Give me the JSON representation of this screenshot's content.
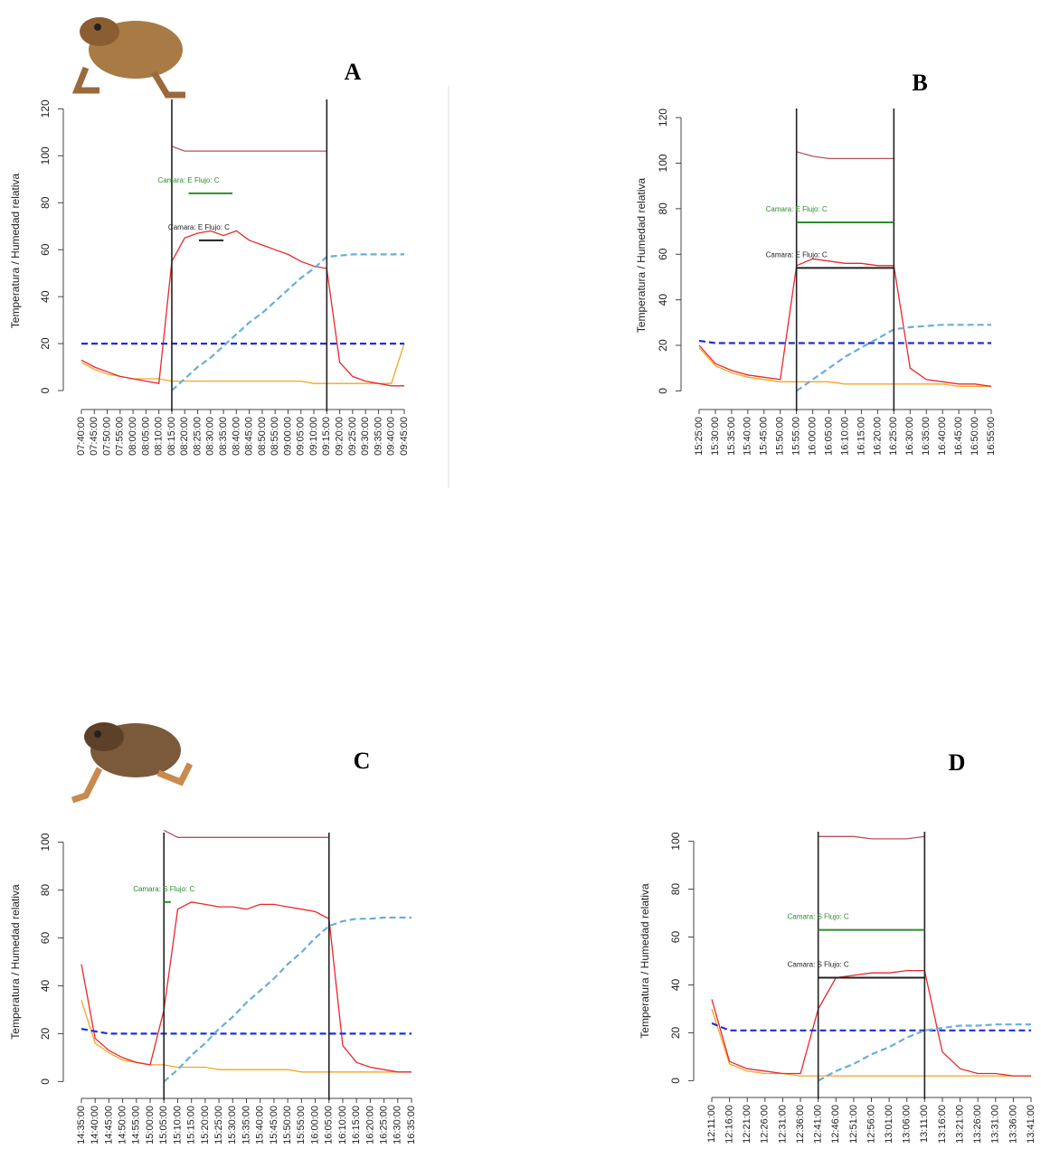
{
  "chart_data": [
    {
      "type": "line",
      "title": "A",
      "ylabel": "Temperatura / Humedad relativa",
      "categories": [
        "07:40:00",
        "07:45:00",
        "07:50:00",
        "07:55:00",
        "08:00:00",
        "08:05:00",
        "08:10:00",
        "08:15:00",
        "08:20:00",
        "08:25:00",
        "08:30:00",
        "08:35:00",
        "08:40:00",
        "08:45:00",
        "08:50:00",
        "08:55:00",
        "09:00:00",
        "09:05:00",
        "09:10:00",
        "09:15:00",
        "09:20:00",
        "09:25:00",
        "09:30:00",
        "09:35:00",
        "09:40:00",
        "09:45:00"
      ],
      "ylim": [
        -5,
        124
      ],
      "yticks": [
        0,
        20,
        40,
        60,
        80,
        100,
        120
      ],
      "vlines": [
        7,
        19
      ],
      "series": [
        {
          "color": "#b5535a",
          "dash": false,
          "values": [
            null,
            null,
            null,
            null,
            null,
            null,
            null,
            104,
            102,
            102,
            102,
            102,
            102,
            102,
            102,
            102,
            102,
            102,
            102,
            102,
            null,
            null,
            null,
            null,
            null,
            null
          ]
        },
        {
          "color": "#f5a623",
          "dash": false,
          "values": [
            12,
            9,
            7,
            6,
            5,
            5,
            5,
            4,
            4,
            4,
            4,
            4,
            4,
            4,
            4,
            4,
            4,
            4,
            3,
            3,
            3,
            3,
            3,
            3,
            3,
            20
          ]
        },
        {
          "color": "#e8282d",
          "dash": false,
          "values": [
            13,
            10,
            8,
            6,
            5,
            4,
            3,
            55,
            65,
            67,
            68,
            66,
            68,
            64,
            62,
            60,
            58,
            55,
            53,
            52,
            12,
            6,
            4,
            3,
            2,
            2
          ]
        },
        {
          "color": "#1f2fdc",
          "dash": true,
          "values": [
            20,
            20,
            20,
            20,
            20,
            20,
            20,
            20,
            20,
            20,
            20,
            20,
            20,
            20,
            20,
            20,
            20,
            20,
            20,
            20,
            20,
            20,
            20,
            20,
            20,
            20
          ]
        },
        {
          "color": "#6aaed6",
          "dash": true,
          "values": [
            null,
            null,
            null,
            null,
            null,
            null,
            null,
            0,
            5,
            10,
            14,
            19,
            24,
            29,
            33,
            38,
            43,
            48,
            52,
            57,
            57.5,
            58,
            58,
            58,
            58,
            58
          ]
        }
      ],
      "segments": [
        {
          "label": "Camara: E Flujo: C",
          "color": "#2e8b2e",
          "value": 84,
          "x": [
            8.3,
            11.7
          ]
        },
        {
          "label": "Camara: E Flujo: C",
          "color": "#222222",
          "value": 64,
          "x": [
            9.1,
            11
          ]
        }
      ]
    },
    {
      "type": "line",
      "title": "B",
      "ylabel": "Temperatura / Humedad relativa",
      "categories": [
        "15:25:00",
        "15:30:00",
        "15:35:00",
        "15:40:00",
        "15:45:00",
        "15:50:00",
        "15:55:00",
        "16:00:00",
        "16:05:00",
        "16:10:00",
        "16:15:00",
        "16:20:00",
        "16:25:00",
        "16:30:00",
        "16:35:00",
        "16:40:00",
        "16:45:00",
        "16:50:00",
        "16:55:00"
      ],
      "ylim": [
        -5,
        124
      ],
      "yticks": [
        0,
        20,
        40,
        60,
        80,
        100,
        120
      ],
      "vlines": [
        6,
        12
      ],
      "series": [
        {
          "color": "#b5535a",
          "dash": false,
          "values": [
            null,
            null,
            null,
            null,
            null,
            null,
            105,
            103,
            102,
            102,
            102,
            102,
            102,
            null,
            null,
            null,
            null,
            null,
            null
          ]
        },
        {
          "color": "#f5a623",
          "dash": false,
          "values": [
            19,
            11,
            8,
            6,
            5,
            4,
            4,
            4,
            4,
            3,
            3,
            3,
            3,
            3,
            3,
            3,
            2,
            2,
            2
          ]
        },
        {
          "color": "#e8282d",
          "dash": false,
          "values": [
            20,
            12,
            9,
            7,
            6,
            5,
            55,
            58,
            57,
            56,
            56,
            55,
            55,
            10,
            5,
            4,
            3,
            3,
            2
          ]
        },
        {
          "color": "#1f2fdc",
          "dash": true,
          "values": [
            22,
            21,
            21,
            21,
            21,
            21,
            21,
            21,
            21,
            21,
            21,
            21,
            21,
            21,
            21,
            21,
            21,
            21,
            21
          ]
        },
        {
          "color": "#6aaed6",
          "dash": true,
          "values": [
            null,
            null,
            null,
            null,
            null,
            null,
            0,
            5,
            10,
            15,
            19,
            23,
            27,
            28,
            28.5,
            29,
            29,
            29,
            29
          ]
        }
      ],
      "segments": [
        {
          "label": "Camara: E Flujo: C",
          "color": "#2e8b2e",
          "value": 74,
          "x": [
            6,
            12
          ]
        },
        {
          "label": "Camara: E Flujo: C",
          "color": "#222222",
          "value": 54,
          "x": [
            6,
            12
          ]
        }
      ]
    },
    {
      "type": "line",
      "title": "C",
      "ylabel": "Temperatura / Humedad relativa",
      "categories": [
        "14:35:00",
        "14:40:00",
        "14:45:00",
        "14:50:00",
        "14:55:00",
        "15:00:00",
        "15:05:00",
        "15:10:00",
        "15:15:00",
        "15:20:00",
        "15:25:00",
        "15:30:00",
        "15:35:00",
        "15:40:00",
        "15:45:00",
        "15:50:00",
        "15:55:00",
        "16:00:00",
        "16:05:00",
        "16:10:00",
        "16:15:00",
        "16:20:00",
        "16:25:00",
        "16:30:00",
        "16:35:00"
      ],
      "ylim": [
        -4,
        104
      ],
      "yticks": [
        0,
        20,
        40,
        60,
        80,
        100
      ],
      "vlines": [
        6,
        18
      ],
      "series": [
        {
          "color": "#b5535a",
          "dash": false,
          "values": [
            null,
            null,
            null,
            null,
            null,
            null,
            105,
            102,
            102,
            102,
            102,
            102,
            102,
            102,
            102,
            102,
            102,
            102,
            102,
            null,
            null,
            null,
            null,
            null,
            null
          ]
        },
        {
          "color": "#f5a623",
          "dash": false,
          "values": [
            34,
            16,
            12,
            9,
            8,
            7,
            7,
            6,
            6,
            6,
            5,
            5,
            5,
            5,
            5,
            5,
            4,
            4,
            4,
            4,
            4,
            4,
            4,
            4,
            4
          ]
        },
        {
          "color": "#e8282d",
          "dash": false,
          "values": [
            49,
            18,
            13,
            10,
            8,
            7,
            30,
            72,
            75,
            74,
            73,
            73,
            72,
            74,
            74,
            73,
            72,
            71,
            68,
            15,
            8,
            6,
            5,
            4,
            4
          ]
        },
        {
          "color": "#1f2fdc",
          "dash": true,
          "values": [
            22,
            21,
            20,
            20,
            20,
            20,
            20,
            20,
            20,
            20,
            20,
            20,
            20,
            20,
            20,
            20,
            20,
            20,
            20,
            20,
            20,
            20,
            20,
            20,
            20
          ]
        },
        {
          "color": "#6aaed6",
          "dash": true,
          "values": [
            null,
            null,
            null,
            null,
            null,
            null,
            0,
            5,
            11,
            16,
            22,
            27,
            33,
            38,
            43,
            49,
            54,
            60,
            65,
            67,
            68,
            68,
            68.5,
            68.5,
            68.5
          ]
        }
      ],
      "segments": [
        {
          "label": "Camara: S Flujo: C",
          "color": "#2e8b2e",
          "value": 75,
          "x": [
            6,
            6.5
          ]
        }
      ]
    },
    {
      "type": "line",
      "title": "D",
      "ylabel": "Temperatura / Humedad relativa",
      "categories": [
        "12:11:00",
        "12:16:00",
        "12:21:00",
        "12:26:00",
        "12:31:00",
        "12:36:00",
        "12:41:00",
        "12:46:00",
        "12:51:00",
        "12:56:00",
        "13:01:00",
        "13:06:00",
        "13:11:00",
        "13:16:00",
        "13:21:00",
        "13:26:00",
        "13:31:00",
        "13:36:00",
        "13:41:00"
      ],
      "ylim": [
        -4,
        104
      ],
      "yticks": [
        0,
        20,
        40,
        60,
        80,
        100
      ],
      "vlines": [
        6,
        12
      ],
      "series": [
        {
          "color": "#b5535a",
          "dash": false,
          "values": [
            null,
            null,
            null,
            null,
            null,
            null,
            102,
            102,
            102,
            101,
            101,
            101,
            102,
            null,
            null,
            null,
            null,
            null,
            null
          ]
        },
        {
          "color": "#f5a623",
          "dash": false,
          "values": [
            30,
            7,
            4,
            3,
            3,
            2,
            2,
            2,
            2,
            2,
            2,
            2,
            2,
            2,
            2,
            2,
            2,
            2,
            2
          ]
        },
        {
          "color": "#e8282d",
          "dash": false,
          "values": [
            34,
            8,
            5,
            4,
            3,
            3,
            30,
            43,
            44,
            45,
            45,
            46,
            46,
            12,
            5,
            3,
            3,
            2,
            2
          ]
        },
        {
          "color": "#1f2fdc",
          "dash": true,
          "values": [
            24,
            21,
            21,
            21,
            21,
            21,
            21,
            21,
            21,
            21,
            21,
            21,
            21,
            21,
            21,
            21,
            21,
            21,
            21
          ]
        },
        {
          "color": "#6aaed6",
          "dash": true,
          "values": [
            null,
            null,
            null,
            null,
            null,
            null,
            0,
            4,
            7,
            11,
            14,
            18,
            21,
            22,
            23,
            23,
            23.5,
            23.5,
            23.5
          ]
        }
      ],
      "segments": [
        {
          "label": "Camara: S Flujo: C",
          "color": "#2e8b2e",
          "value": 63,
          "x": [
            6,
            12
          ]
        },
        {
          "label": "Camara: S Flujo: C",
          "color": "#222222",
          "value": 43,
          "x": [
            6,
            12
          ]
        }
      ]
    }
  ]
}
